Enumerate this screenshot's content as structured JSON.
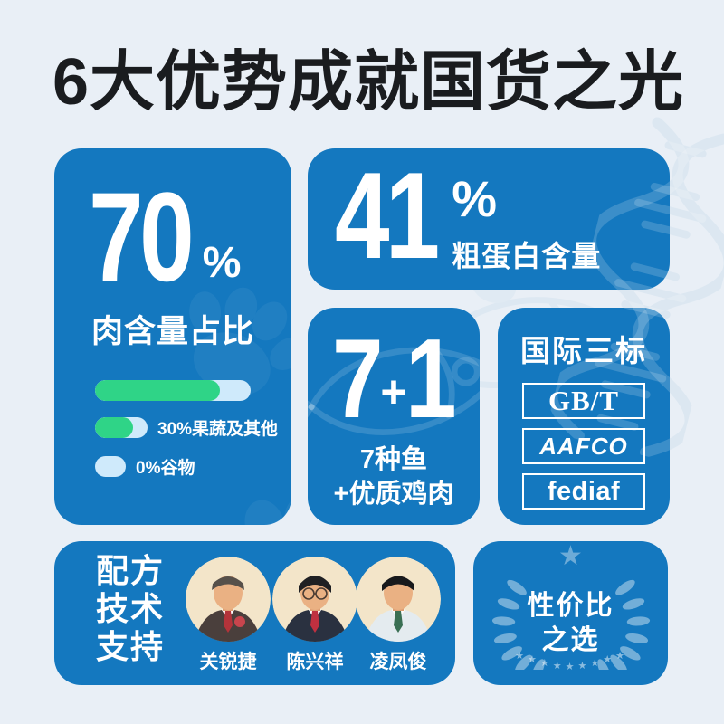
{
  "page": {
    "title": "6大优势成就国货之光",
    "background": "#e9eff6",
    "card_color": "#1478bf",
    "accent_green": "#2fd487",
    "track_blue": "#cfeafb"
  },
  "meat_card": {
    "value": "70",
    "unit": "%",
    "label": "肉含量占比",
    "bars": [
      {
        "label": ""
      },
      {
        "label": "30%果蔬及其他"
      },
      {
        "label": "0%谷物"
      }
    ]
  },
  "protein_card": {
    "value": "41",
    "unit": "%",
    "label": "粗蛋白含量"
  },
  "fish_card": {
    "num_left": "7",
    "plus": "+",
    "num_right": "1",
    "line1": "7种鱼",
    "line2": "+优质鸡肉"
  },
  "standards_card": {
    "title": "国际三标",
    "badges": [
      "GB/T",
      "AAFCO",
      "fediaf"
    ]
  },
  "formula_card": {
    "label_line1": "配方",
    "label_line2": "技术",
    "label_line3": "支持",
    "experts": [
      {
        "name": "关锐捷"
      },
      {
        "name": "陈兴祥"
      },
      {
        "name": "凌凤俊"
      }
    ]
  },
  "value_card": {
    "star": "★",
    "line1": "性价比",
    "line2": "之选",
    "stars_row": "★★★★★★★★★"
  }
}
